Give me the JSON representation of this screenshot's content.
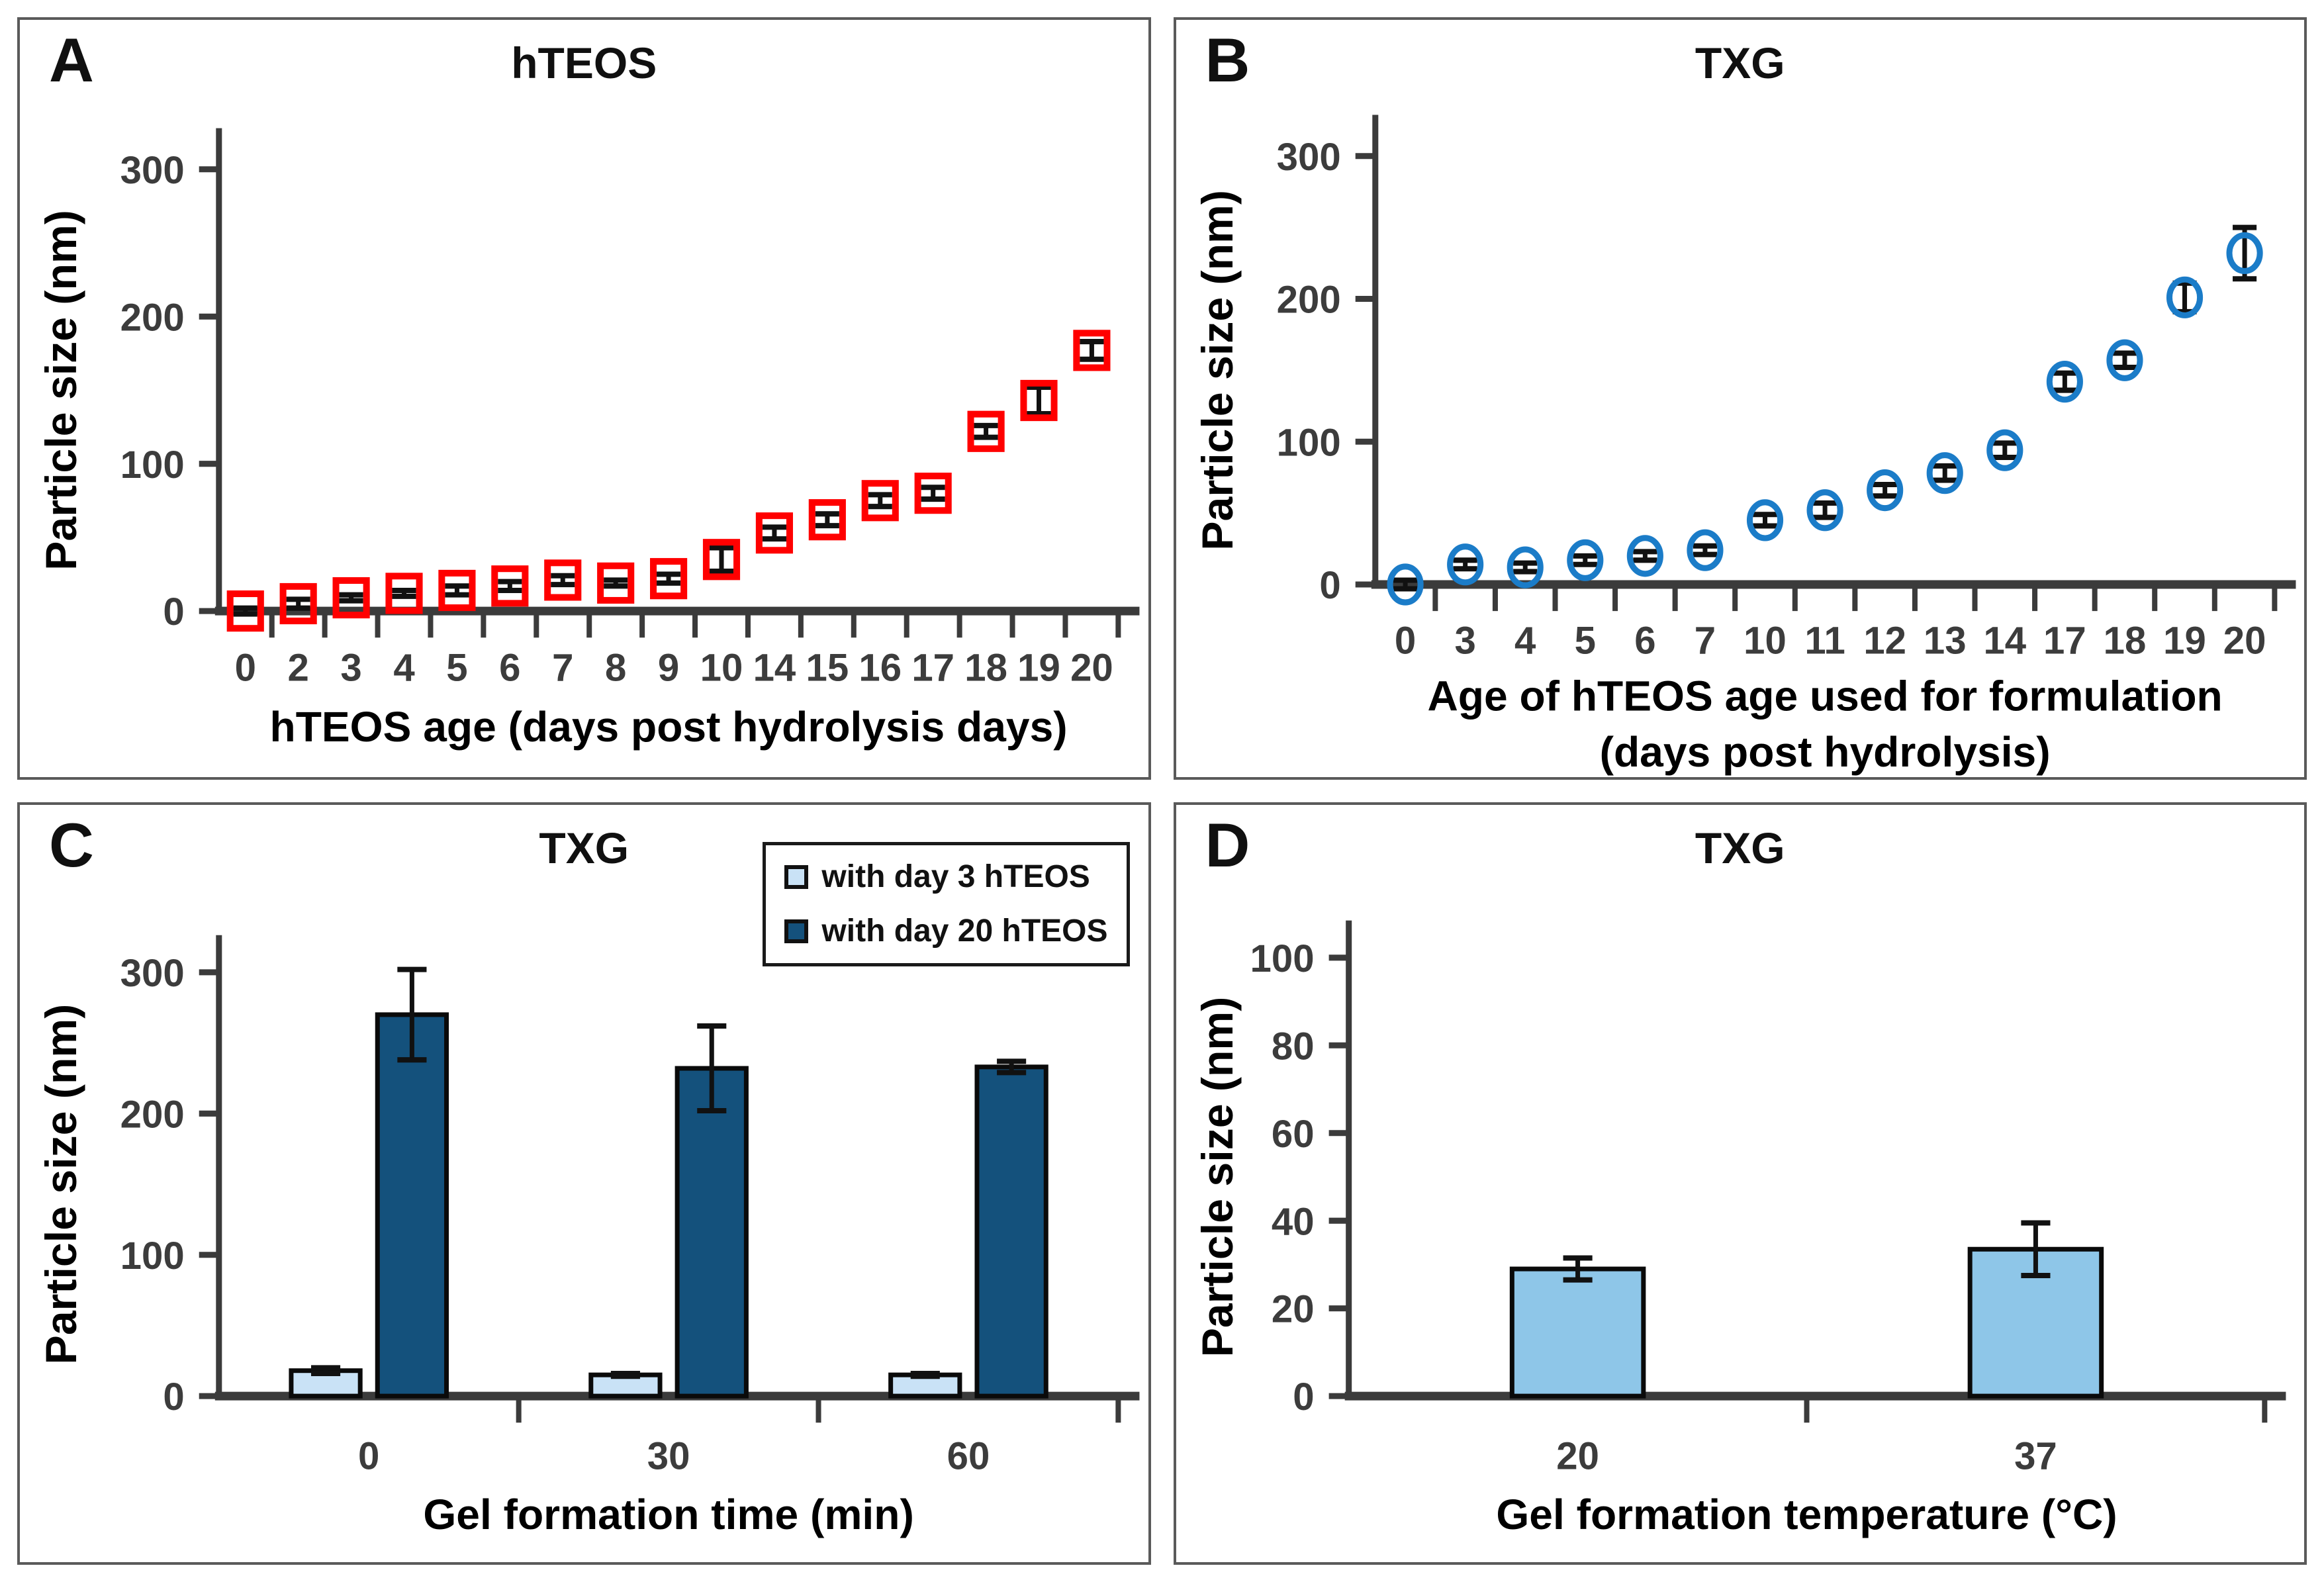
{
  "figure": {
    "background": "#FFFFFF",
    "panel_border_color": "#5A5A5A",
    "axis_color": "#3B3B3B",
    "tick_label_color": "#3C3C3C",
    "error_bar_color": "#111111"
  },
  "chart_data": [
    {
      "panel": "A",
      "type": "scatter",
      "title": "hTEOS",
      "marker": {
        "shape": "square",
        "color": "#FF0000"
      },
      "categories": [
        "0",
        "2",
        "3",
        "4",
        "5",
        "6",
        "7",
        "8",
        "9",
        "10",
        "14",
        "15",
        "16",
        "17",
        "18",
        "19",
        "20"
      ],
      "values": [
        0,
        5,
        9,
        12,
        14,
        17,
        21,
        19,
        22,
        35,
        53,
        62,
        75,
        80,
        122,
        143,
        177
      ],
      "errors": [
        2,
        3,
        2,
        2,
        3,
        3,
        3,
        2,
        3,
        8,
        4,
        4,
        4,
        4,
        4,
        9,
        6
      ],
      "xlabel": "hTEOS age (days post hydrolysis days)",
      "ylabel": "Particle size (nm)",
      "yticks": [
        0,
        100,
        200,
        300
      ],
      "ylim": [
        0,
        320
      ],
      "grid": false
    },
    {
      "panel": "B",
      "type": "scatter",
      "title": "TXG",
      "marker": {
        "shape": "circle",
        "color": "#1B7CC8"
      },
      "categories": [
        "0",
        "3",
        "4",
        "5",
        "6",
        "7",
        "10",
        "11",
        "12",
        "13",
        "14",
        "17",
        "18",
        "19",
        "20"
      ],
      "values": [
        0,
        14,
        12,
        17,
        20,
        24,
        45,
        52,
        66,
        78,
        94,
        142,
        157,
        201,
        232
      ],
      "errors": [
        3,
        3,
        3,
        3,
        3,
        3,
        4,
        5,
        4,
        5,
        5,
        6,
        5,
        10,
        18
      ],
      "xlabel": "Age of hTEOS age used for formulation",
      "xlabel2": "(days post hydrolysis)",
      "ylabel": "Particle size (nm)",
      "yticks": [
        0,
        100,
        200,
        300
      ],
      "ylim": [
        0,
        320
      ],
      "grid": false
    },
    {
      "panel": "C",
      "type": "bar",
      "title": "TXG",
      "categories": [
        "0",
        "30",
        "60"
      ],
      "series": [
        {
          "name": "with day 3 hTEOS",
          "color": "#C9E2F6",
          "values": [
            18,
            15,
            15
          ],
          "errors": [
            2,
            1,
            1
          ]
        },
        {
          "name": "with day 20 hTEOS",
          "color": "#14517C",
          "values": [
            270,
            232,
            233
          ],
          "errors": [
            32,
            30,
            4
          ]
        }
      ],
      "xlabel": "Gel formation time (min)",
      "ylabel": "Particle size (nm)",
      "yticks": [
        0,
        100,
        200,
        300
      ],
      "ylim": [
        0,
        320
      ],
      "legend_position": "top-right",
      "grid": false
    },
    {
      "panel": "D",
      "type": "bar",
      "title": "TXG",
      "categories": [
        "20",
        "37"
      ],
      "series": [
        {
          "name": "",
          "color": "#8EC6E8",
          "values": [
            29,
            33.5
          ],
          "errors": [
            2.5,
            6
          ]
        }
      ],
      "xlabel": "Gel formation temperature (°C)",
      "ylabel": "Particle size (nm)",
      "yticks": [
        0,
        20,
        40,
        60,
        80,
        100
      ],
      "ylim": [
        0,
        100
      ],
      "grid": false
    }
  ]
}
